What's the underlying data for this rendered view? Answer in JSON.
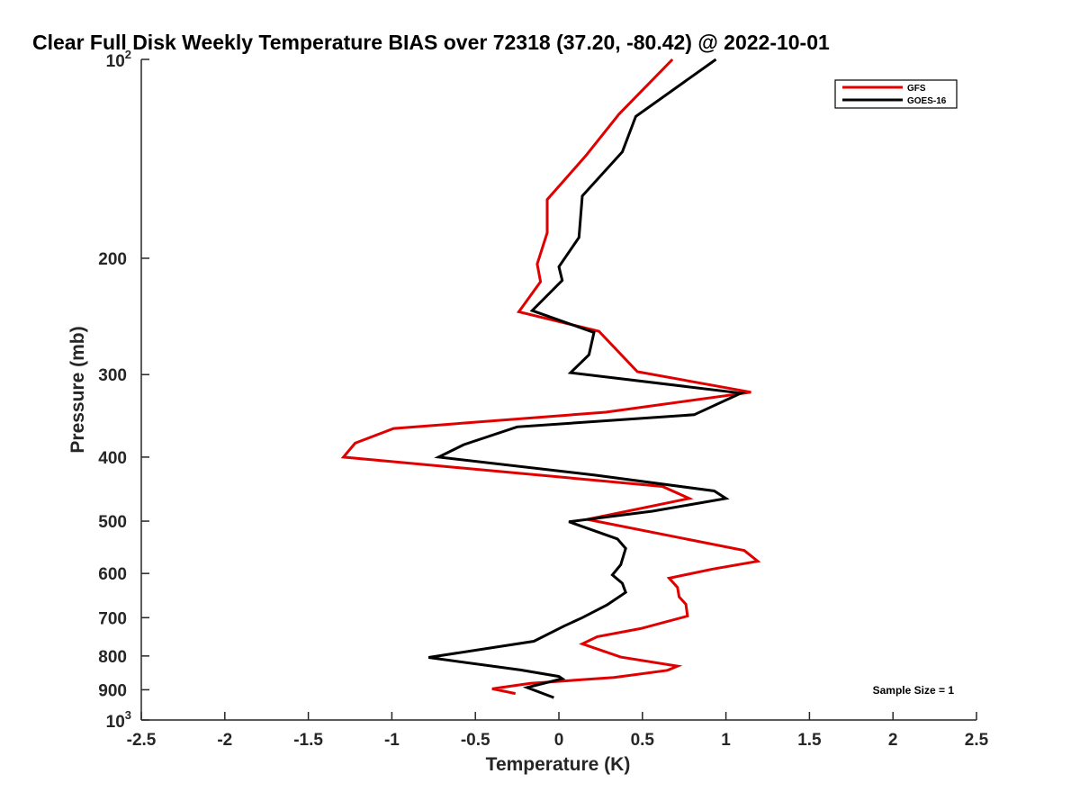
{
  "chart_data": {
    "type": "line",
    "title": "Clear Full Disk Weekly Temperature BIAS over 72318 (37.20, -80.42) @ 2022-10-01",
    "xlabel": "Temperature (K)",
    "ylabel": "Pressure (mb)",
    "xlim": [
      -2.5,
      2.5
    ],
    "ylim": [
      100,
      1000
    ],
    "y_scale": "log",
    "y_reversed": true,
    "x_ticks": [
      {
        "value": -2.5,
        "label": "-2.5"
      },
      {
        "value": -2,
        "label": "-2"
      },
      {
        "value": -1.5,
        "label": "-1.5"
      },
      {
        "value": -1,
        "label": "-1"
      },
      {
        "value": -0.5,
        "label": "-0.5"
      },
      {
        "value": 0,
        "label": "0"
      },
      {
        "value": 0.5,
        "label": "0.5"
      },
      {
        "value": 1,
        "label": "1"
      },
      {
        "value": 1.5,
        "label": "1.5"
      },
      {
        "value": 2,
        "label": "2"
      },
      {
        "value": 2.5,
        "label": "2.5"
      }
    ],
    "y_ticks": [
      {
        "value": 100,
        "base": "10",
        "exp": "2"
      },
      {
        "value": 200,
        "label": "200"
      },
      {
        "value": 300,
        "label": "300"
      },
      {
        "value": 400,
        "label": "400"
      },
      {
        "value": 500,
        "label": "500"
      },
      {
        "value": 600,
        "label": "600"
      },
      {
        "value": 700,
        "label": "700"
      },
      {
        "value": 800,
        "label": "800"
      },
      {
        "value": 900,
        "label": "900"
      },
      {
        "value": 1000,
        "base": "10",
        "exp": "3"
      }
    ],
    "grid": false,
    "legend_position": "top-right",
    "annotation": "Sample Size = 1",
    "series": [
      {
        "name": "GFS",
        "color": "#e00000",
        "points": [
          [
            0.68,
            100
          ],
          [
            0.36,
            121
          ],
          [
            0.16,
            140
          ],
          [
            -0.07,
            163
          ],
          [
            -0.07,
            183
          ],
          [
            -0.13,
            204
          ],
          [
            -0.11,
            217
          ],
          [
            -0.24,
            241
          ],
          [
            0.24,
            258
          ],
          [
            0.47,
            297
          ],
          [
            1.15,
            319
          ],
          [
            0.28,
            342
          ],
          [
            -0.99,
            362
          ],
          [
            -1.22,
            381
          ],
          [
            -1.29,
            400
          ],
          [
            0.62,
            443
          ],
          [
            0.78,
            462
          ],
          [
            0.17,
            497
          ],
          [
            1.11,
            554
          ],
          [
            1.19,
            575
          ],
          [
            0.92,
            591
          ],
          [
            0.66,
            610
          ],
          [
            0.71,
            630
          ],
          [
            0.72,
            651
          ],
          [
            0.76,
            668
          ],
          [
            0.77,
            696
          ],
          [
            0.49,
            727
          ],
          [
            0.23,
            748
          ],
          [
            0.14,
            767
          ],
          [
            0.37,
            803
          ],
          [
            0.71,
            829
          ],
          [
            0.65,
            841
          ],
          [
            0.33,
            862
          ],
          [
            -0.17,
            880
          ],
          [
            -0.4,
            897
          ],
          [
            -0.26,
            912
          ]
        ]
      },
      {
        "name": "GOES-16",
        "color": "#000000",
        "points": [
          [
            0.94,
            100
          ],
          [
            0.46,
            122
          ],
          [
            0.38,
            138
          ],
          [
            0.14,
            161
          ],
          [
            0.12,
            186
          ],
          [
            0.0,
            206
          ],
          [
            0.02,
            216
          ],
          [
            -0.16,
            240
          ],
          [
            0.21,
            259
          ],
          [
            0.18,
            280
          ],
          [
            0.07,
            298
          ],
          [
            1.09,
            320
          ],
          [
            0.81,
            345
          ],
          [
            -0.25,
            360
          ],
          [
            -0.57,
            383
          ],
          [
            -0.72,
            400
          ],
          [
            0.22,
            426
          ],
          [
            0.93,
            450
          ],
          [
            1.0,
            462
          ],
          [
            0.56,
            483
          ],
          [
            0.06,
            501
          ],
          [
            0.35,
            532
          ],
          [
            0.4,
            550
          ],
          [
            0.37,
            582
          ],
          [
            0.32,
            603
          ],
          [
            0.38,
            621
          ],
          [
            0.4,
            641
          ],
          [
            0.29,
            669
          ],
          [
            0.14,
            700
          ],
          [
            0.03,
            721
          ],
          [
            -0.15,
            760
          ],
          [
            -0.78,
            804
          ],
          [
            -0.23,
            840
          ],
          [
            0.0,
            859
          ],
          [
            0.02,
            866
          ],
          [
            -0.19,
            893
          ],
          [
            -0.03,
            925
          ]
        ]
      }
    ]
  }
}
